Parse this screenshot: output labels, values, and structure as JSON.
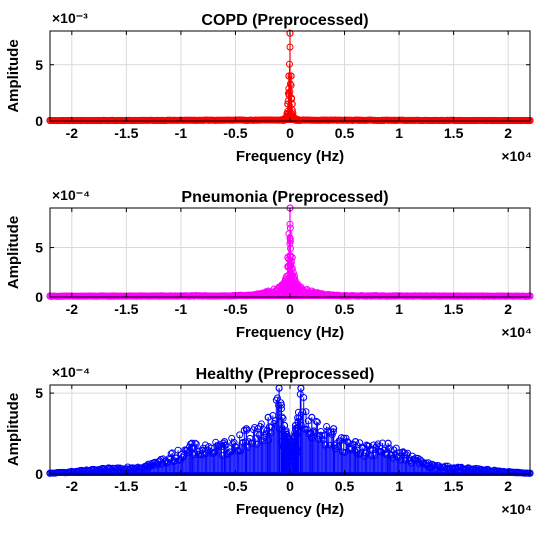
{
  "chart_data": [
    {
      "type": "line",
      "title": "COPD (Preprocessed)",
      "xlabel": "Frequency (Hz)",
      "ylabel": "Amplitude",
      "x_multiplier": "×10⁴",
      "y_multiplier": "×10⁻³",
      "xlim": [
        -2.2,
        2.2
      ],
      "ylim": [
        0,
        8
      ],
      "xticks": [
        -2,
        -1.5,
        -1,
        -0.5,
        0,
        0.5,
        1,
        1.5,
        2
      ],
      "xtick_labels": [
        "-2",
        "-1.5",
        "-1",
        "-0.5",
        "0",
        "0.5",
        "1",
        "1.5",
        "2"
      ],
      "yticks": [
        0,
        5
      ],
      "ytick_labels": [
        "0",
        "5"
      ],
      "grid": true,
      "color": "#ff0000",
      "marker": "circle",
      "series": [
        {
          "x": [
            -2.2,
            -0.08,
            -0.05,
            -0.03,
            -0.02,
            -0.01,
            0,
            0.01,
            0.02,
            0.03,
            0.05,
            0.08,
            2.2
          ],
          "y": [
            0.05,
            0.1,
            0.2,
            0.4,
            1.5,
            4.0,
            7.8,
            4.0,
            1.5,
            0.4,
            0.2,
            0.1,
            0.05
          ]
        }
      ]
    },
    {
      "type": "line",
      "title": "Pneumonia (Preprocessed)",
      "xlabel": "Frequency (Hz)",
      "ylabel": "Amplitude",
      "x_multiplier": "×10⁴",
      "y_multiplier": "×10⁻⁴",
      "xlim": [
        -2.2,
        2.2
      ],
      "ylim": [
        0,
        9
      ],
      "xticks": [
        -2,
        -1.5,
        -1,
        -0.5,
        0,
        0.5,
        1,
        1.5,
        2
      ],
      "xtick_labels": [
        "-2",
        "-1.5",
        "-1",
        "-0.5",
        "0",
        "0.5",
        "1",
        "1.5",
        "2"
      ],
      "yticks": [
        0,
        5
      ],
      "ytick_labels": [
        "0",
        "5"
      ],
      "grid": true,
      "color": "#ff00ff",
      "marker": "circle",
      "series": [
        {
          "x": [
            -2.2,
            -0.5,
            -0.3,
            -0.2,
            -0.1,
            -0.05,
            -0.02,
            0,
            0.02,
            0.05,
            0.1,
            0.2,
            0.3,
            0.5,
            2.2
          ],
          "y": [
            0.1,
            0.15,
            0.3,
            0.6,
            1.0,
            1.5,
            4.0,
            9.0,
            4.0,
            1.5,
            1.0,
            0.6,
            0.3,
            0.15,
            0.1
          ]
        }
      ]
    },
    {
      "type": "line",
      "title": "Healthy (Preprocessed)",
      "xlabel": "Frequency (Hz)",
      "ylabel": "Amplitude",
      "x_multiplier": "×10⁴",
      "y_multiplier": "×10⁻⁴",
      "xlim": [
        -2.2,
        2.2
      ],
      "ylim": [
        0,
        5.5
      ],
      "xticks": [
        -2,
        -1.5,
        -1,
        -0.5,
        0,
        0.5,
        1,
        1.5,
        2
      ],
      "xtick_labels": [
        "-2",
        "-1.5",
        "-1",
        "-0.5",
        "0",
        "0.5",
        "1",
        "1.5",
        "2"
      ],
      "yticks": [
        0,
        5
      ],
      "ytick_labels": [
        "0",
        "5"
      ],
      "grid": true,
      "color": "#0000ff",
      "marker": "circle",
      "series": [
        {
          "x": [
            -2.2,
            -1.3,
            -0.9,
            -0.6,
            -0.4,
            -0.2,
            -0.1,
            -0.05,
            0,
            0.05,
            0.1,
            0.2,
            0.4,
            0.6,
            0.9,
            1.3,
            2.2
          ],
          "y": [
            0.05,
            0.6,
            1.9,
            2.0,
            2.8,
            3.5,
            5.3,
            3.0,
            2.0,
            3.0,
            5.3,
            3.5,
            2.8,
            2.0,
            1.9,
            0.6,
            0.05
          ]
        }
      ]
    }
  ]
}
